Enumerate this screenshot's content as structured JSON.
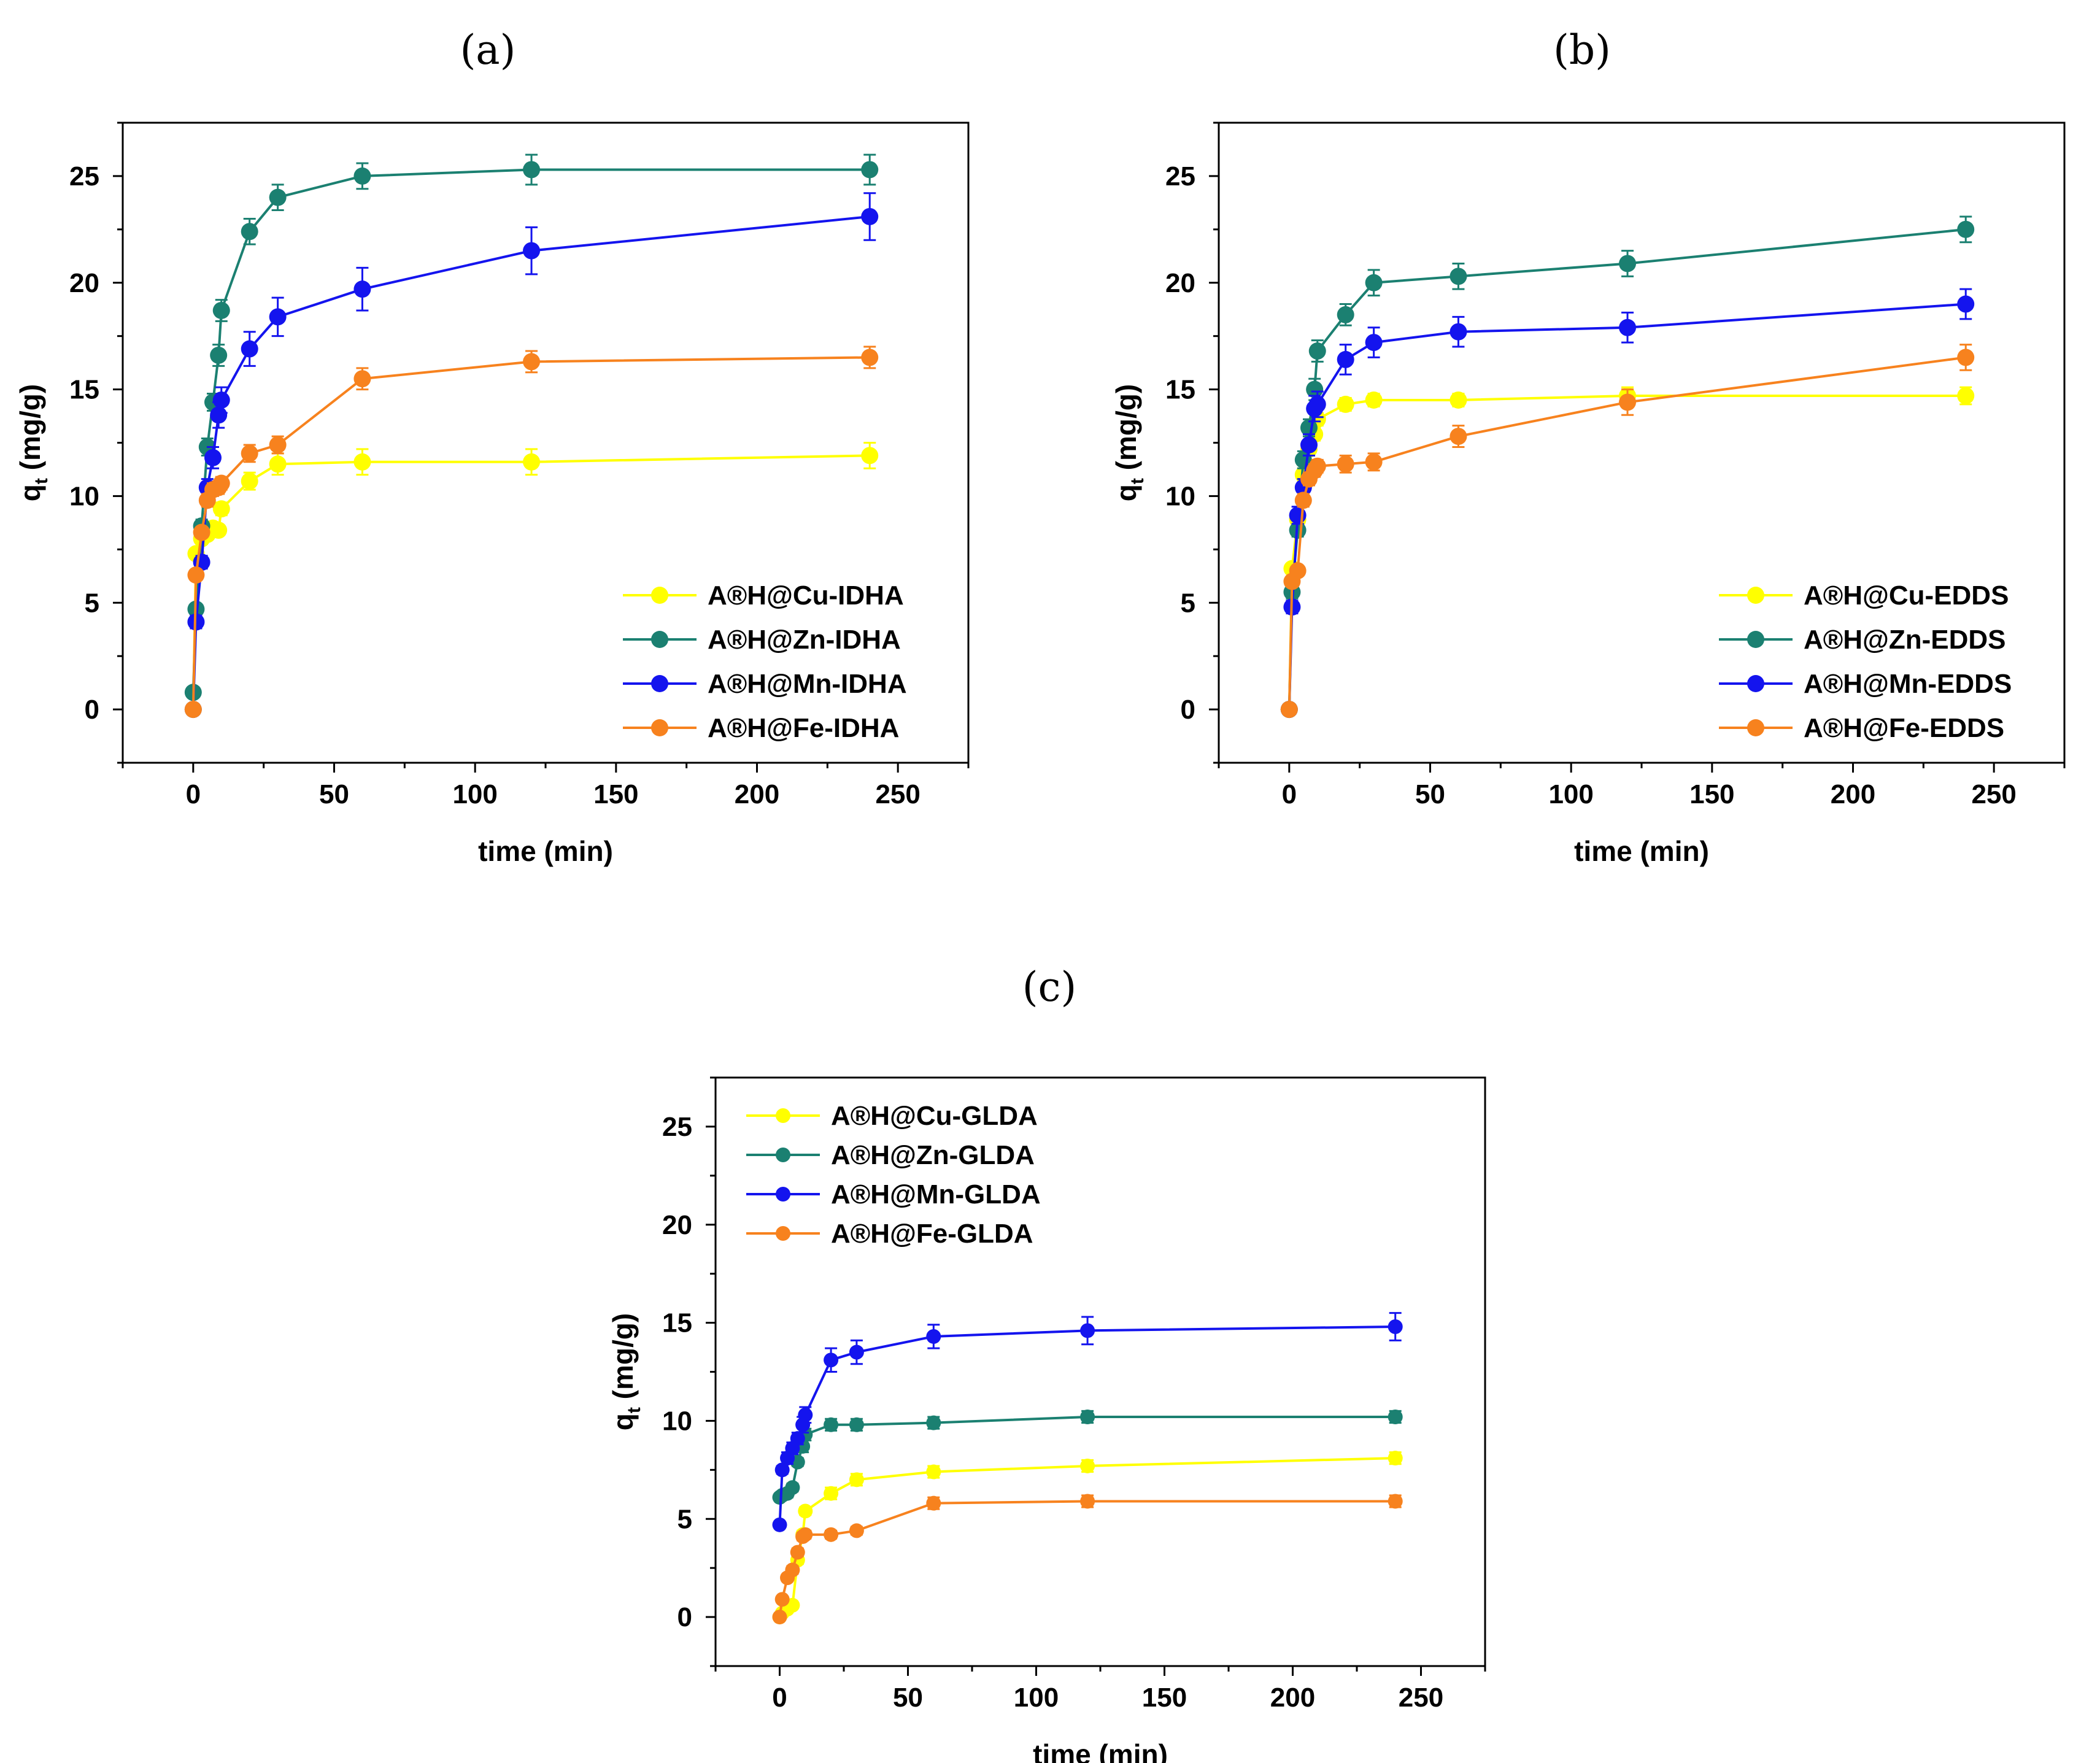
{
  "chart_data": [
    {
      "type": "line",
      "panel_label": "(a)",
      "xlabel": "time (min)",
      "ylabel": "q",
      "ylabel_sub": "t",
      "ylabel_unit": " (mg/g)",
      "xlim": [
        -25,
        275
      ],
      "ylim": [
        -2.5,
        27.5
      ],
      "xticks": [
        0,
        50,
        100,
        150,
        200,
        250
      ],
      "yticks": [
        0,
        5,
        10,
        15,
        20,
        25
      ],
      "legend_position": "lower-right",
      "series": [
        {
          "name": "A®H@Cu-IDHA",
          "color": "#ffff00",
          "x": [
            0,
            1,
            3,
            5,
            7,
            9,
            10,
            20,
            30,
            60,
            120,
            240
          ],
          "y": [
            0,
            7.3,
            8.0,
            8.2,
            8.5,
            8.4,
            9.4,
            10.7,
            11.5,
            11.6,
            11.6,
            11.9
          ],
          "err": [
            0,
            0.2,
            0.2,
            0.2,
            0.2,
            0.2,
            0.3,
            0.4,
            0.5,
            0.6,
            0.6,
            0.6
          ]
        },
        {
          "name": "A®H@Zn-IDHA",
          "color": "#1b8071",
          "x": [
            0,
            1,
            3,
            5,
            7,
            9,
            10,
            20,
            30,
            60,
            120,
            240
          ],
          "y": [
            0.8,
            4.7,
            8.6,
            12.3,
            14.4,
            16.6,
            18.7,
            22.4,
            24.0,
            25.0,
            25.3,
            25.3
          ],
          "err": [
            0,
            0.2,
            0.3,
            0.4,
            0.4,
            0.5,
            0.5,
            0.6,
            0.6,
            0.6,
            0.7,
            0.7
          ]
        },
        {
          "name": "A®H@Mn-IDHA",
          "color": "#1414ee",
          "x": [
            0,
            1,
            3,
            5,
            7,
            9,
            10,
            20,
            30,
            60,
            120,
            240
          ],
          "y": [
            0,
            4.1,
            6.9,
            10.4,
            11.8,
            13.8,
            14.5,
            16.9,
            18.4,
            19.7,
            21.5,
            23.1
          ],
          "err": [
            0,
            0.3,
            0.3,
            0.4,
            0.5,
            0.6,
            0.6,
            0.8,
            0.9,
            1.0,
            1.1,
            1.1
          ]
        },
        {
          "name": "A®H@Fe-IDHA",
          "color": "#f7821e",
          "x": [
            0,
            1,
            3,
            5,
            7,
            9,
            10,
            20,
            30,
            60,
            120,
            240
          ],
          "y": [
            0,
            6.3,
            8.3,
            9.8,
            10.3,
            10.4,
            10.6,
            12.0,
            12.4,
            15.5,
            16.3,
            16.5
          ],
          "err": [
            0,
            0.2,
            0.2,
            0.3,
            0.3,
            0.3,
            0.3,
            0.4,
            0.4,
            0.5,
            0.5,
            0.5
          ]
        }
      ]
    },
    {
      "type": "line",
      "panel_label": "(b)",
      "xlabel": "time (min)",
      "ylabel": "q",
      "ylabel_sub": "t",
      "ylabel_unit": " (mg/g)",
      "xlim": [
        -25,
        275
      ],
      "ylim": [
        -2.5,
        27.5
      ],
      "xticks": [
        0,
        50,
        100,
        150,
        200,
        250
      ],
      "yticks": [
        0,
        5,
        10,
        15,
        20,
        25
      ],
      "legend_position": "lower-right",
      "series": [
        {
          "name": "A®H@Cu-EDDS",
          "color": "#ffff00",
          "x": [
            0,
            1,
            3,
            5,
            7,
            9,
            10,
            20,
            30,
            60,
            120,
            240
          ],
          "y": [
            0,
            6.6,
            8.9,
            11.0,
            12.2,
            12.9,
            13.6,
            14.3,
            14.5,
            14.5,
            14.7,
            14.7
          ],
          "err": [
            0,
            0.2,
            0.3,
            0.3,
            0.3,
            0.3,
            0.3,
            0.3,
            0.3,
            0.3,
            0.4,
            0.4
          ]
        },
        {
          "name": "A®H@Zn-EDDS",
          "color": "#1b8071",
          "x": [
            0,
            1,
            3,
            5,
            7,
            9,
            10,
            20,
            30,
            60,
            120,
            240
          ],
          "y": [
            0,
            5.5,
            8.4,
            11.7,
            13.2,
            15.0,
            16.8,
            18.5,
            20.0,
            20.3,
            20.9,
            22.5
          ],
          "err": [
            0,
            0.3,
            0.3,
            0.4,
            0.4,
            0.5,
            0.5,
            0.5,
            0.6,
            0.6,
            0.6,
            0.6
          ]
        },
        {
          "name": "A®H@Mn-EDDS",
          "color": "#1414ee",
          "x": [
            0,
            1,
            3,
            5,
            7,
            9,
            10,
            20,
            30,
            60,
            120,
            240
          ],
          "y": [
            0,
            4.8,
            9.1,
            10.4,
            12.4,
            14.1,
            14.3,
            16.4,
            17.2,
            17.7,
            17.9,
            19.0
          ],
          "err": [
            0,
            0.3,
            0.4,
            0.4,
            0.5,
            0.6,
            0.6,
            0.7,
            0.7,
            0.7,
            0.7,
            0.7
          ]
        },
        {
          "name": "A®H@Fe-EDDS",
          "color": "#f7821e",
          "x": [
            0,
            1,
            3,
            5,
            7,
            9,
            10,
            20,
            30,
            60,
            120,
            240
          ],
          "y": [
            0,
            6.0,
            6.5,
            9.8,
            10.8,
            11.2,
            11.4,
            11.5,
            11.6,
            12.8,
            14.4,
            16.5
          ],
          "err": [
            0,
            0.2,
            0.2,
            0.3,
            0.3,
            0.3,
            0.3,
            0.4,
            0.4,
            0.5,
            0.6,
            0.6
          ]
        }
      ]
    },
    {
      "type": "line",
      "panel_label": "(c)",
      "xlabel": "time (min)",
      "ylabel": "q",
      "ylabel_sub": "t",
      "ylabel_unit": " (mg/g)",
      "xlim": [
        -25,
        275
      ],
      "ylim": [
        -2.5,
        27.5
      ],
      "xticks": [
        0,
        50,
        100,
        150,
        200,
        250
      ],
      "yticks": [
        0,
        5,
        10,
        15,
        20,
        25
      ],
      "legend_position": "top-left",
      "series": [
        {
          "name": "A®H@Cu-GLDA",
          "color": "#ffff00",
          "x": [
            0,
            1,
            3,
            5,
            7,
            9,
            10,
            20,
            30,
            60,
            120,
            240
          ],
          "y": [
            0,
            0.2,
            0.4,
            0.6,
            2.9,
            4.2,
            5.4,
            6.3,
            7.0,
            7.4,
            7.7,
            8.1
          ],
          "err": [
            0,
            0.1,
            0.1,
            0.1,
            0.2,
            0.2,
            0.2,
            0.3,
            0.3,
            0.3,
            0.3,
            0.3
          ]
        },
        {
          "name": "A®H@Zn-GLDA",
          "color": "#1b8071",
          "x": [
            0,
            1,
            3,
            5,
            7,
            9,
            10,
            20,
            30,
            60,
            120,
            240
          ],
          "y": [
            6.1,
            6.2,
            6.3,
            6.6,
            7.9,
            8.7,
            9.3,
            9.8,
            9.8,
            9.9,
            10.2,
            10.2
          ],
          "err": [
            0,
            0.2,
            0.2,
            0.2,
            0.2,
            0.3,
            0.3,
            0.3,
            0.3,
            0.3,
            0.3,
            0.3
          ]
        },
        {
          "name": "A®H@Mn-GLDA",
          "color": "#1414ee",
          "x": [
            0,
            1,
            3,
            5,
            7,
            9,
            10,
            20,
            30,
            60,
            120,
            240
          ],
          "y": [
            4.7,
            7.5,
            8.1,
            8.6,
            9.1,
            9.8,
            10.3,
            13.1,
            13.5,
            14.3,
            14.6,
            14.8
          ],
          "err": [
            0,
            0.2,
            0.3,
            0.3,
            0.3,
            0.4,
            0.4,
            0.6,
            0.6,
            0.6,
            0.7,
            0.7
          ]
        },
        {
          "name": "A®H@Fe-GLDA",
          "color": "#f7821e",
          "x": [
            0,
            1,
            3,
            5,
            7,
            9,
            10,
            20,
            30,
            60,
            120,
            240
          ],
          "y": [
            0,
            0.9,
            2.0,
            2.4,
            3.3,
            4.1,
            4.2,
            4.2,
            4.4,
            5.8,
            5.9,
            5.9
          ],
          "err": [
            0,
            0.1,
            0.1,
            0.2,
            0.2,
            0.2,
            0.2,
            0.2,
            0.2,
            0.3,
            0.3,
            0.3
          ]
        }
      ]
    }
  ]
}
